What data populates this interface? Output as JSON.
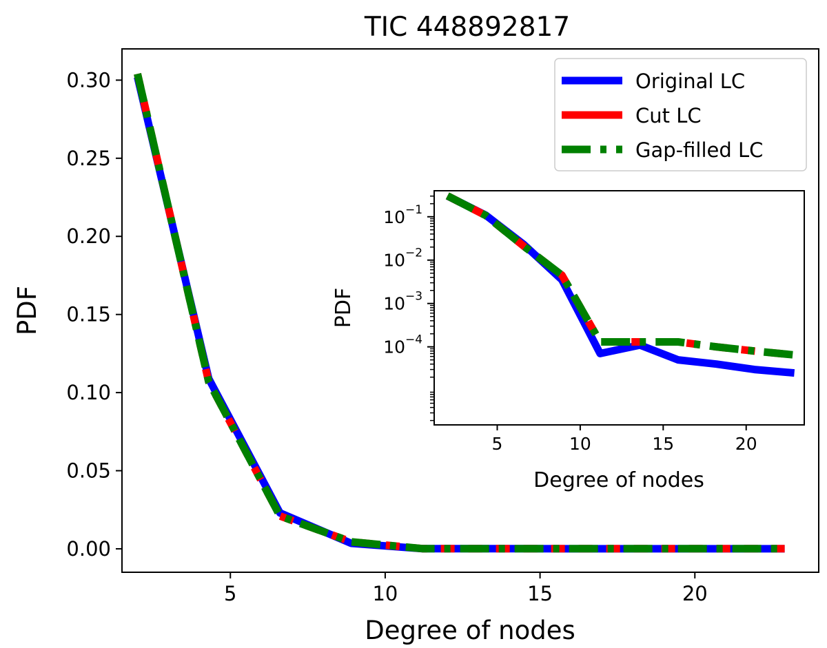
{
  "chart_data": {
    "type": "line",
    "title": "TIC 448892817",
    "xlabel": "Degree of nodes",
    "ylabel": "PDF",
    "xlim": [
      1.5,
      24
    ],
    "ylim": [
      -0.015,
      0.32
    ],
    "x": [
      2.0,
      4.3,
      6.6,
      8.9,
      11.2,
      13.6,
      15.9,
      18.2,
      20.5,
      22.9
    ],
    "xticks": [
      5,
      10,
      15,
      20
    ],
    "xtick_labels": [
      "5",
      "10",
      "15",
      "20"
    ],
    "yticks": [
      0.0,
      0.05,
      0.1,
      0.15,
      0.2,
      0.25,
      0.3
    ],
    "ytick_labels": [
      "0.00",
      "0.05",
      "0.10",
      "0.15",
      "0.20",
      "0.25",
      "0.30"
    ],
    "legend_position": "top-right",
    "series": [
      {
        "name": "Original LC",
        "color": "#0000ff",
        "style": "solid",
        "values": [
          0.302,
          0.109,
          0.023,
          0.0035,
          7e-05,
          0.00011,
          5e-05,
          4e-05,
          3e-05,
          2.5e-05
        ]
      },
      {
        "name": "Cut LC",
        "color": "#ff0000",
        "style": "dashed",
        "values": [
          0.304,
          0.107,
          0.021,
          0.0045,
          0.00013,
          0.00013,
          0.00013,
          0.0001,
          8e-05,
          6.5e-05
        ]
      },
      {
        "name": "Gap-filled LC",
        "color": "#008000",
        "style": "dashdot",
        "values": [
          0.304,
          0.107,
          0.021,
          0.0045,
          0.00013,
          0.00013,
          0.00013,
          0.0001,
          8e-05,
          6.5e-05
        ]
      }
    ],
    "inset": {
      "type": "line",
      "yscale": "log",
      "xlabel": "Degree of nodes",
      "ylabel": "PDF",
      "xlim": [
        1.2,
        23.5
      ],
      "ylim_log10": [
        -5.8,
        -0.4
      ],
      "xticks": [
        5,
        10,
        15,
        20
      ],
      "xtick_labels": [
        "5",
        "10",
        "15",
        "20"
      ],
      "yticks_log10": [
        -4,
        -3,
        -2,
        -1
      ],
      "ytick_labels": [
        "10",
        "10",
        "10",
        "10"
      ],
      "ytick_exponents": [
        "−4",
        "−3",
        "−2",
        "−1"
      ]
    }
  }
}
